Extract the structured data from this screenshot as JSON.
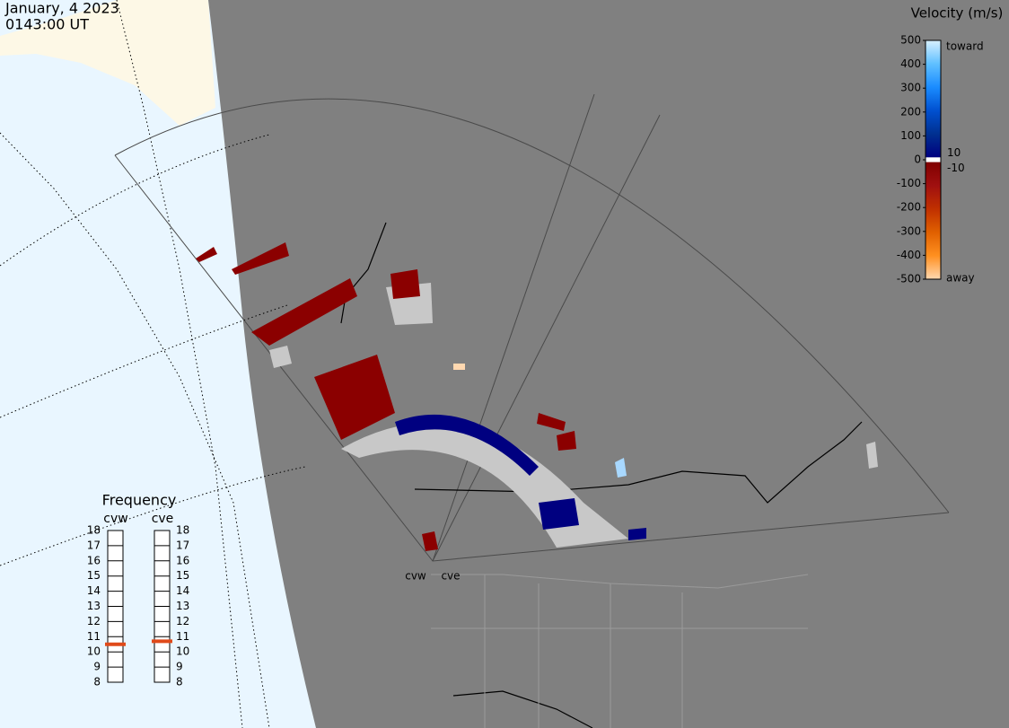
{
  "header": {
    "date": "January, 4 2023",
    "time": "0143:00 UT"
  },
  "velocity_scale": {
    "title": "Velocity (m/s)",
    "ticks": [
      500,
      400,
      300,
      200,
      100,
      0,
      -100,
      -200,
      -300,
      -400,
      -500
    ],
    "inner_ticks": [
      10,
      -10
    ],
    "toward": "toward",
    "away": "away",
    "toward_colors": [
      "#d8f0ff",
      "#60c0ff",
      "#1a8cff",
      "#0050d0",
      "#003090",
      "#000080"
    ],
    "away_colors": [
      "#800000",
      "#a01010",
      "#c03000",
      "#e06000",
      "#ff9020",
      "#ffd8b0"
    ]
  },
  "frequency": {
    "title": "Frequency",
    "ticks": [
      8,
      9,
      10,
      11,
      12,
      13,
      14,
      15,
      16,
      17,
      18
    ],
    "radars": [
      {
        "name": "cvw",
        "value": 10.5,
        "color": "#e04a1a"
      },
      {
        "name": "cve",
        "value": 10.7,
        "color": "#e04a1a"
      }
    ]
  },
  "stations": [
    "cvw",
    "cve"
  ]
}
